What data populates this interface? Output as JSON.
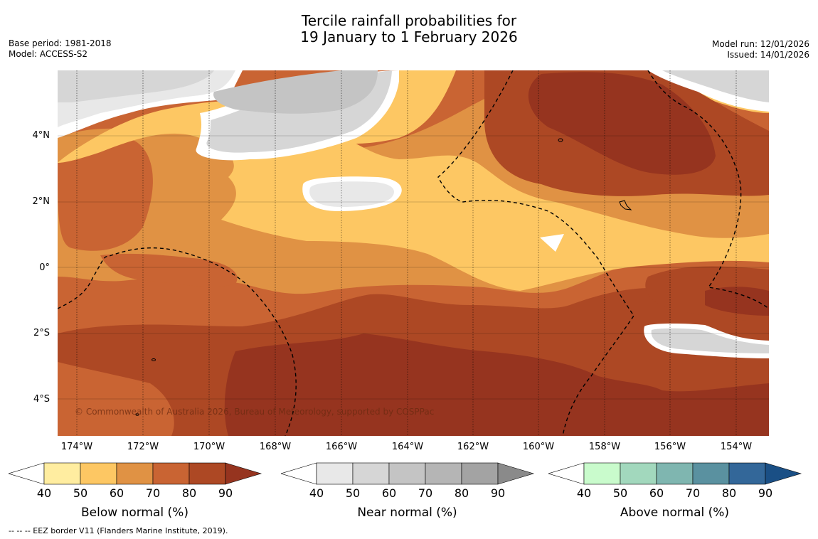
{
  "title_line1": "Tercile rainfall probabilities for",
  "title_line2": "19 January to 1 February 2026",
  "meta_left": {
    "base_period": "Base period: 1981-2018",
    "model": "Model: ACCESS-S2"
  },
  "meta_right": {
    "model_run": "Model run: 12/01/2026",
    "issued": "Issued: 14/01/2026"
  },
  "lat_labels": [
    "4°N",
    "2°N",
    "0°",
    "2°S",
    "4°S"
  ],
  "lon_labels": [
    "174°W",
    "172°W",
    "170°W",
    "168°W",
    "166°W",
    "164°W",
    "162°W",
    "160°W",
    "158°W",
    "156°W",
    "154°W"
  ],
  "copyright": "© Commonwealth of Australia 2026, Bureau of Meteorology, supported by COSPPac",
  "colorbars": [
    {
      "title": "Below normal (%)",
      "ticks": [
        "40",
        "50",
        "60",
        "70",
        "80",
        "90"
      ],
      "colors": [
        "#ffffff",
        "#ffeda0",
        "#fdc763",
        "#e09244",
        "#c96433",
        "#ad4824",
        "#96341f"
      ]
    },
    {
      "title": "Near normal (%)",
      "ticks": [
        "40",
        "50",
        "60",
        "70",
        "80",
        "90"
      ],
      "colors": [
        "#ffffff",
        "#e8e8e8",
        "#d6d6d6",
        "#c4c4c4",
        "#b5b5b5",
        "#a3a3a3",
        "#8a8a8a"
      ]
    },
    {
      "title": "Above normal (%)",
      "ticks": [
        "40",
        "50",
        "60",
        "70",
        "80",
        "90"
      ],
      "colors": [
        "#ffffff",
        "#c9fbcc",
        "#a2d8bd",
        "#7fb6b0",
        "#5a91a0",
        "#336799",
        "#1a4f85"
      ]
    }
  ],
  "footnote": "--  --  -- EEZ border V11 (Flanders Marine Institute, 2019)."
}
